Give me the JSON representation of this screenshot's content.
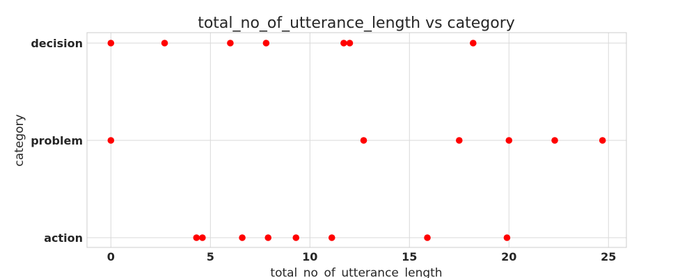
{
  "chart_data": {
    "type": "scatter",
    "title": "total_no_of_utterance_length vs category",
    "xlabel": "total_no_of_utterance_length",
    "ylabel": "category",
    "categories": [
      "action",
      "problem",
      "decision"
    ],
    "xlim": [
      -1.2,
      25.9
    ],
    "xticks": [
      0,
      5,
      10,
      15,
      20,
      25
    ],
    "grid": true,
    "marker_color": "#ff0000",
    "points": [
      {
        "x": 0.0,
        "y": "decision"
      },
      {
        "x": 2.7,
        "y": "decision"
      },
      {
        "x": 6.0,
        "y": "decision"
      },
      {
        "x": 7.8,
        "y": "decision"
      },
      {
        "x": 11.7,
        "y": "decision"
      },
      {
        "x": 12.0,
        "y": "decision"
      },
      {
        "x": 18.2,
        "y": "decision"
      },
      {
        "x": 0.0,
        "y": "problem"
      },
      {
        "x": 12.7,
        "y": "problem"
      },
      {
        "x": 17.5,
        "y": "problem"
      },
      {
        "x": 20.0,
        "y": "problem"
      },
      {
        "x": 22.3,
        "y": "problem"
      },
      {
        "x": 24.7,
        "y": "problem"
      },
      {
        "x": 4.3,
        "y": "action"
      },
      {
        "x": 4.6,
        "y": "action"
      },
      {
        "x": 6.6,
        "y": "action"
      },
      {
        "x": 7.9,
        "y": "action"
      },
      {
        "x": 9.3,
        "y": "action"
      },
      {
        "x": 11.1,
        "y": "action"
      },
      {
        "x": 15.9,
        "y": "action"
      },
      {
        "x": 19.9,
        "y": "action"
      }
    ]
  }
}
